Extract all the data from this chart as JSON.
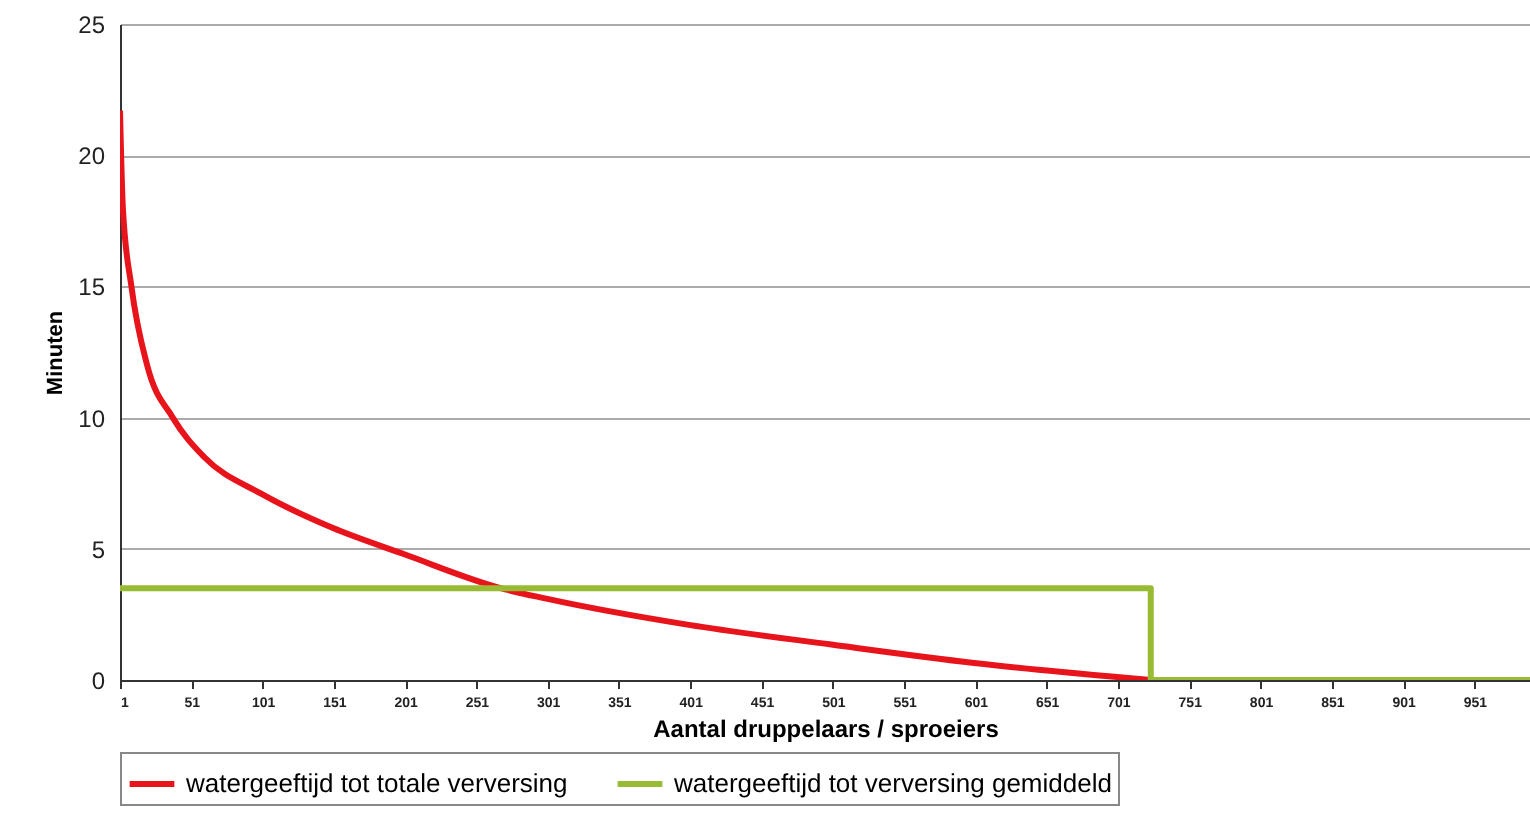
{
  "chart_data": {
    "type": "line",
    "xlabel": "Aantal druppelaars / sproeiers",
    "ylabel": "Minuten",
    "xlim": [
      1,
      990
    ],
    "xticks": [
      1,
      51,
      101,
      151,
      201,
      251,
      301,
      351,
      401,
      451,
      501,
      551,
      601,
      651,
      701,
      751,
      801,
      851,
      901,
      951
    ],
    "ylim": [
      0,
      25
    ],
    "yticks": [
      0,
      5,
      10,
      15,
      20,
      25
    ],
    "grid": "y",
    "legend": "bottom",
    "marker": "none",
    "line_style": "solid",
    "series": [
      {
        "name": "watergeeftijd tot totale verversing",
        "color": "#e8141b",
        "x": [
          1,
          3,
          9,
          20,
          38,
          60,
          100,
          150,
          200,
          268,
          300,
          400,
          500,
          600,
          724
        ],
        "values": [
          21.7,
          18,
          15,
          12,
          10,
          8.5,
          7.1,
          5.8,
          4.8,
          3.5,
          3.1,
          2.1,
          1.35,
          0.65,
          0
        ]
      },
      {
        "name": "watergeeftijd tot verversing gemiddeld",
        "color": "#99bb33",
        "x": [
          1,
          724,
          724,
          990
        ],
        "values": [
          3.5,
          3.5,
          0,
          0
        ]
      }
    ]
  }
}
